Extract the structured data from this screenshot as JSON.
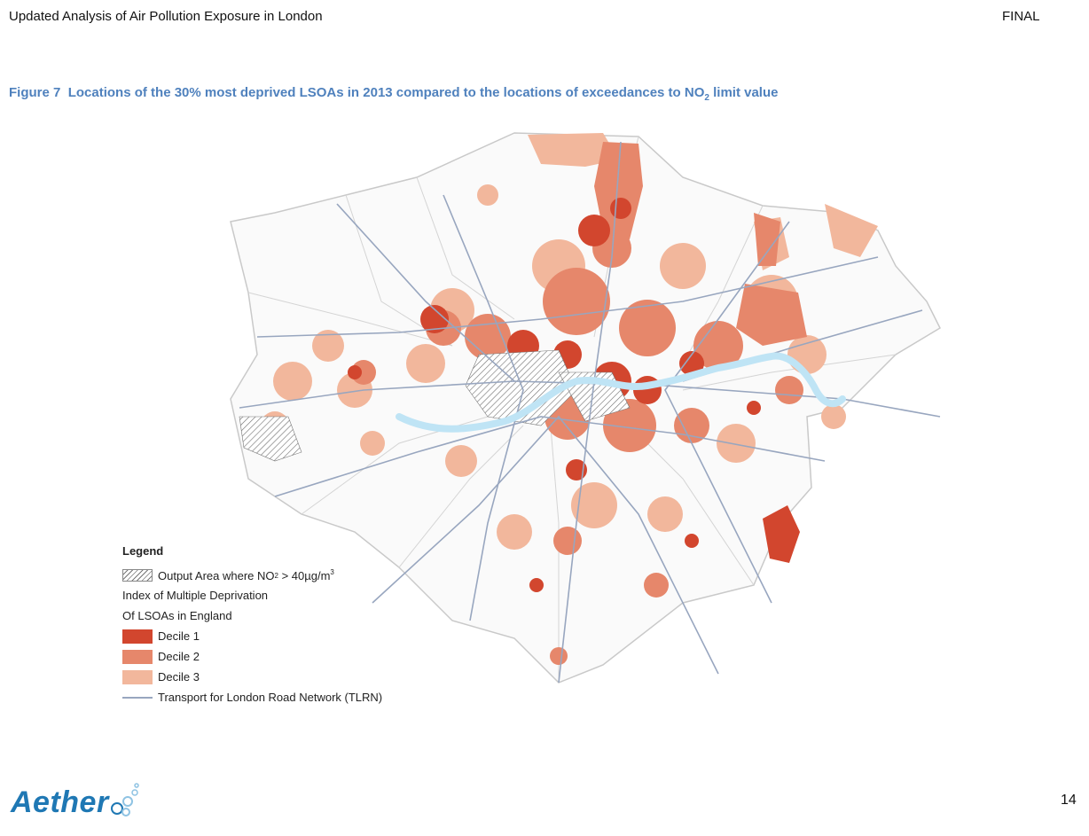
{
  "header": {
    "left": "Updated Analysis of Air Pollution Exposure in London",
    "right": "FINAL"
  },
  "caption": {
    "figure_label": "Figure 7",
    "text_before": "Locations of the 30% most deprived LSOAs in 2013 compared to the locations of exceedances to NO",
    "subscript": "2",
    "text_after": " limit value"
  },
  "legend": {
    "title": "Legend",
    "hatch_label_before": "Output Area where NO",
    "hatch_label_sub": "2",
    "hatch_label_mid": " > 40µg/m",
    "hatch_label_sup": "3",
    "imd_line1": "Index of Multiple Deprivation",
    "imd_line2": "Of LSOAs in England",
    "decile1": "Decile 1",
    "decile2": "Decile 2",
    "decile3": "Decile 3",
    "road": "Transport for London Road Network (TLRN)"
  },
  "colors": {
    "decile1": "#d2462e",
    "decile2": "#e6876b",
    "decile3": "#f2b79c",
    "river": "#bfe4f5",
    "road": "#98a6bf",
    "caption": "#4f81bd",
    "logo": "#1f78b4"
  },
  "footer": {
    "logo": "Aether",
    "page_number": "14"
  }
}
